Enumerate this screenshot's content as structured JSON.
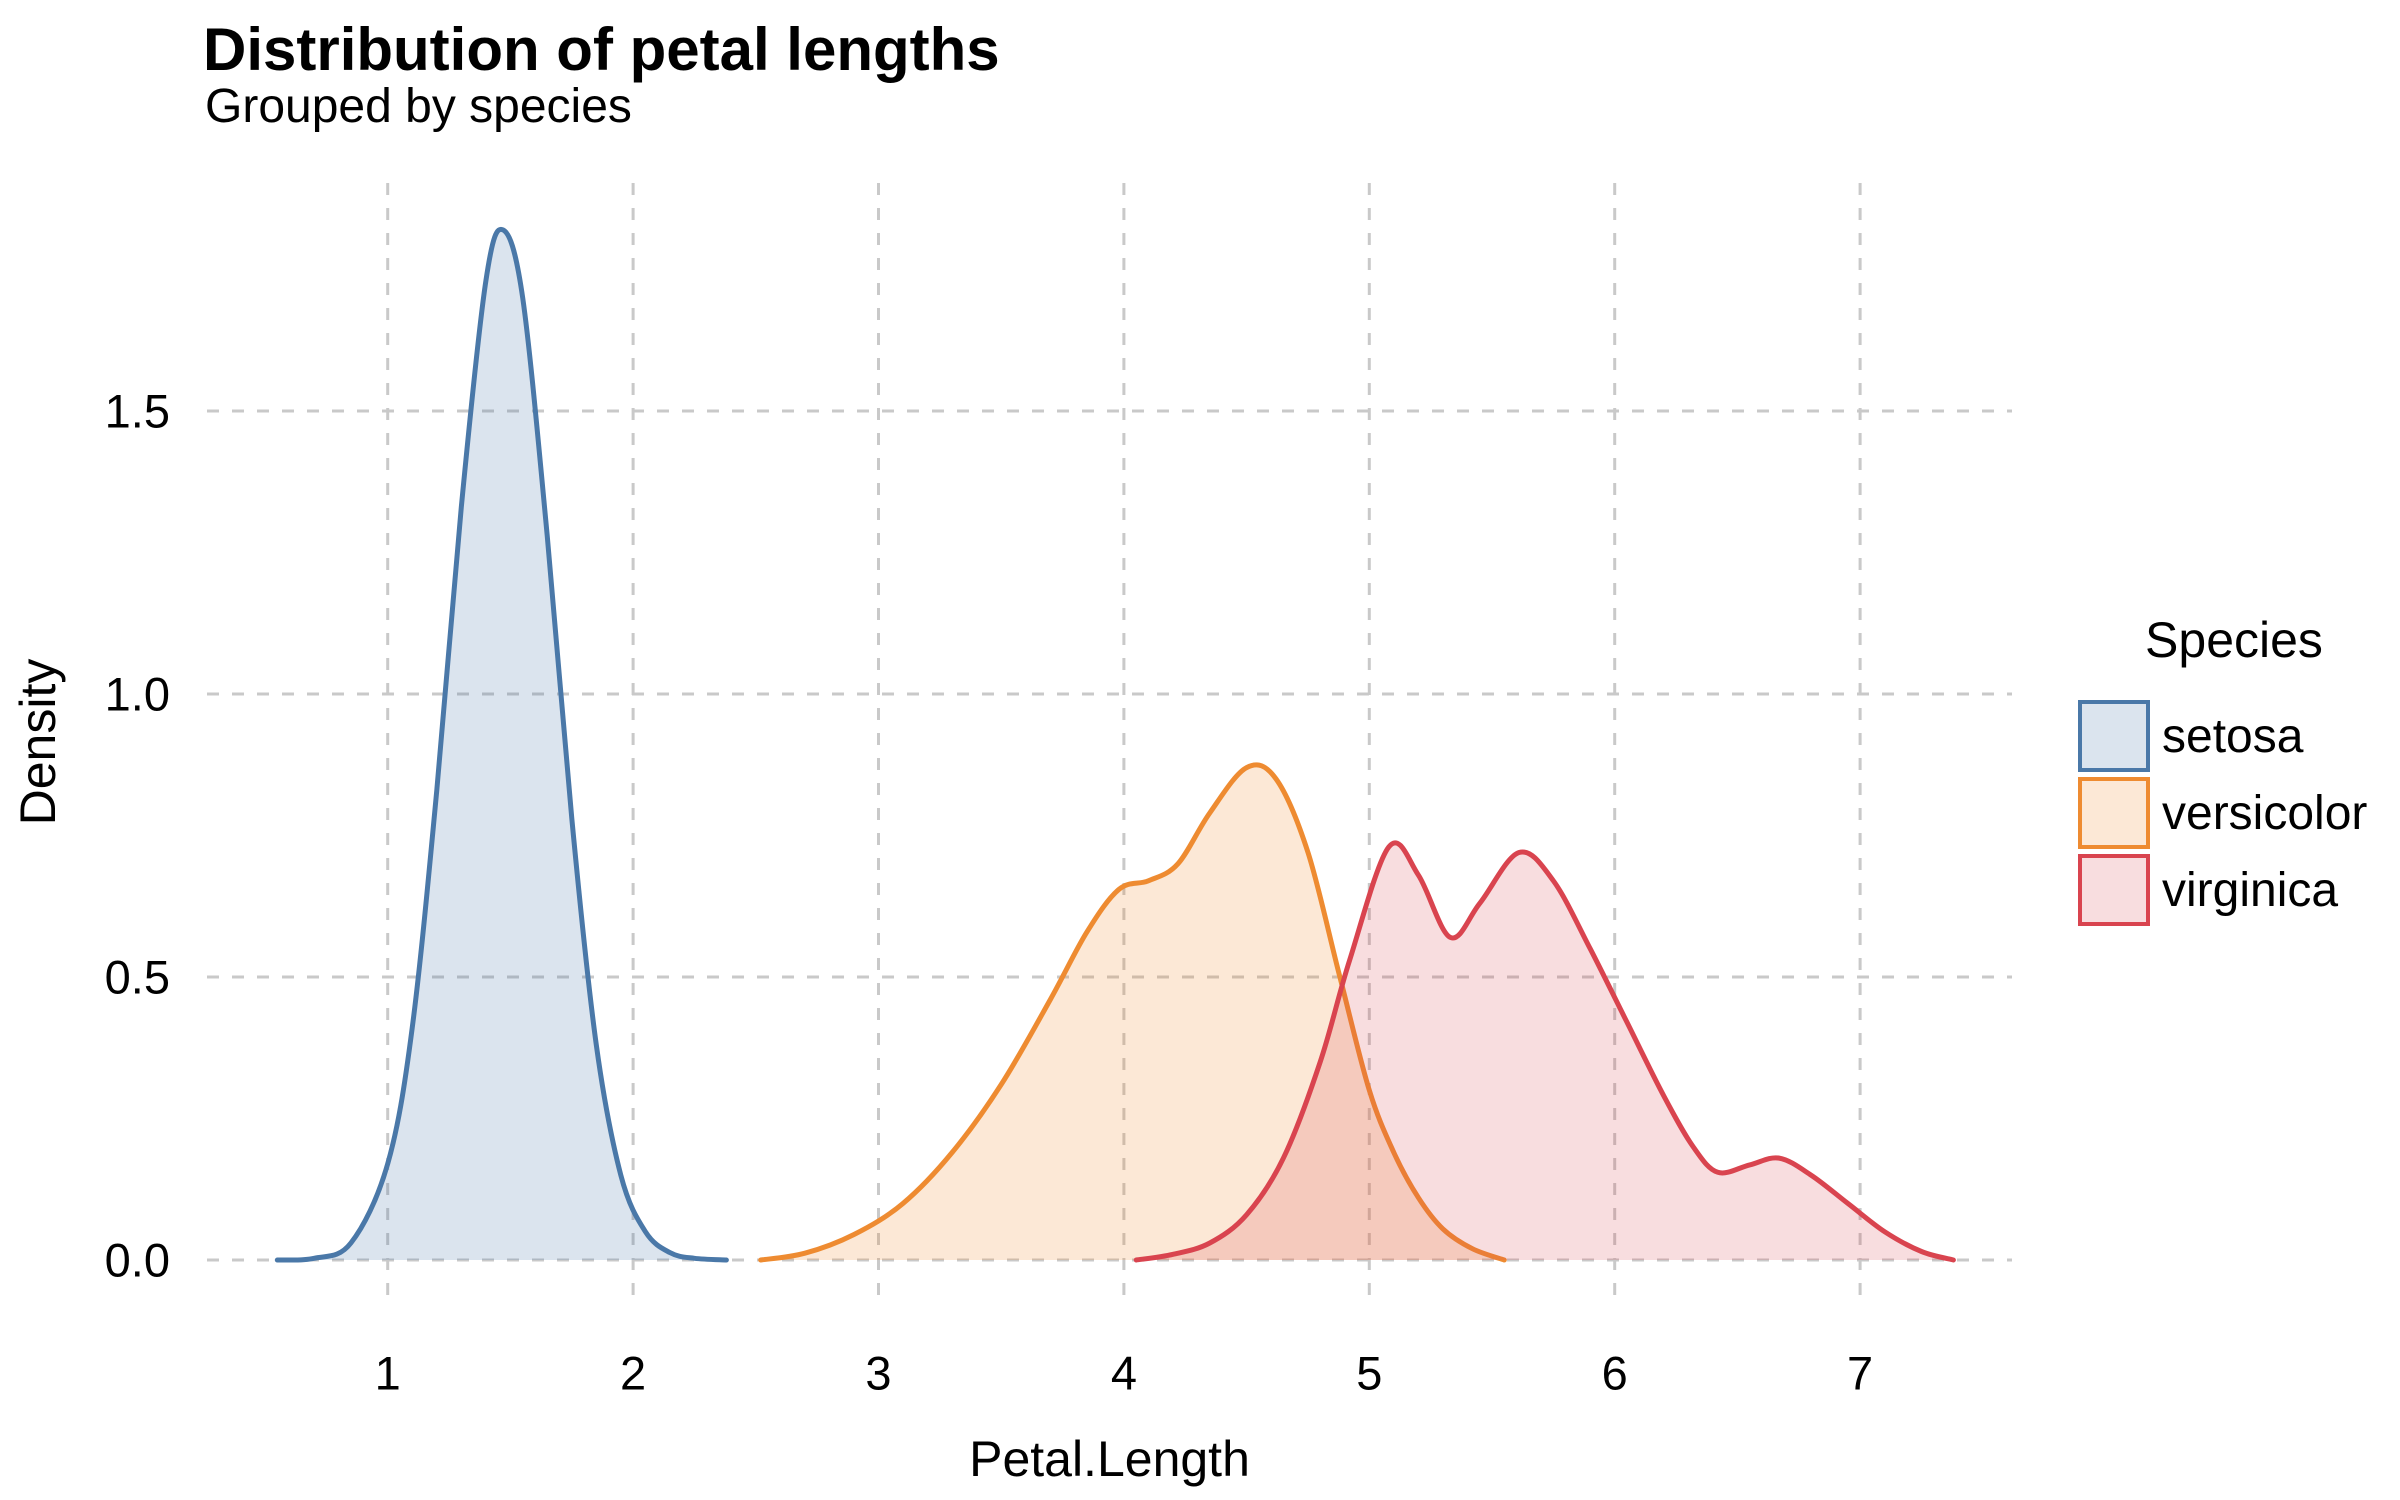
{
  "chart_data": {
    "type": "area",
    "title": "Distribution of petal lengths",
    "subtitle": "Grouped by species",
    "xlabel": "Petal.Length",
    "ylabel": "Density",
    "legend_title": "Species",
    "legend_position": "right",
    "grid": "dashed-major-both",
    "xlim": [
      0.26,
      7.62
    ],
    "ylim": [
      0,
      1.9
    ],
    "x_ticks": [
      1,
      2,
      3,
      4,
      5,
      6,
      7
    ],
    "x_tick_labels": [
      "1",
      "2",
      "3",
      "4",
      "5",
      "6",
      "7"
    ],
    "y_tick_values": [
      0,
      0.5,
      1.0,
      1.5
    ],
    "y_tick_labels": [
      "0.0",
      "0.5",
      "1.0",
      "1.5"
    ],
    "grid_color": "#c9c9c9",
    "text_color": "#000000",
    "series": [
      {
        "name": "setosa",
        "stroke": "#4a78a8",
        "fill": "rgba(74,120,168,0.20)",
        "peak": {
          "x": 1.47,
          "y": 1.82
        },
        "points": [
          [
            0.55,
            0
          ],
          [
            0.7,
            0.003
          ],
          [
            0.85,
            0.03
          ],
          [
            1.0,
            0.17
          ],
          [
            1.1,
            0.41
          ],
          [
            1.2,
            0.83
          ],
          [
            1.3,
            1.33
          ],
          [
            1.4,
            1.73
          ],
          [
            1.47,
            1.82
          ],
          [
            1.55,
            1.7
          ],
          [
            1.65,
            1.28
          ],
          [
            1.75,
            0.78
          ],
          [
            1.85,
            0.38
          ],
          [
            1.95,
            0.15
          ],
          [
            2.05,
            0.05
          ],
          [
            2.15,
            0.013
          ],
          [
            2.25,
            0.003
          ],
          [
            2.38,
            0
          ]
        ]
      },
      {
        "name": "versicolor",
        "stroke": "#ee8b31",
        "fill": "rgba(238,139,49,0.20)",
        "peak": {
          "x": 4.5,
          "y": 0.87
        },
        "points": [
          [
            2.52,
            0
          ],
          [
            2.7,
            0.012
          ],
          [
            2.9,
            0.045
          ],
          [
            3.1,
            0.1
          ],
          [
            3.3,
            0.19
          ],
          [
            3.5,
            0.31
          ],
          [
            3.7,
            0.46
          ],
          [
            3.85,
            0.58
          ],
          [
            3.98,
            0.655
          ],
          [
            4.1,
            0.67
          ],
          [
            4.22,
            0.7
          ],
          [
            4.35,
            0.79
          ],
          [
            4.5,
            0.87
          ],
          [
            4.62,
            0.85
          ],
          [
            4.75,
            0.72
          ],
          [
            4.88,
            0.5
          ],
          [
            5.0,
            0.3
          ],
          [
            5.1,
            0.19
          ],
          [
            5.2,
            0.11
          ],
          [
            5.3,
            0.055
          ],
          [
            5.42,
            0.02
          ],
          [
            5.55,
            0
          ]
        ]
      },
      {
        "name": "virginica",
        "stroke": "#d9444f",
        "fill": "rgba(217,68,79,0.18)",
        "peak": {
          "x": 5.08,
          "y": 0.73
        },
        "points": [
          [
            4.05,
            0
          ],
          [
            4.2,
            0.01
          ],
          [
            4.35,
            0.03
          ],
          [
            4.5,
            0.08
          ],
          [
            4.65,
            0.18
          ],
          [
            4.8,
            0.35
          ],
          [
            4.92,
            0.53
          ],
          [
            5.08,
            0.73
          ],
          [
            5.2,
            0.68
          ],
          [
            5.33,
            0.57
          ],
          [
            5.45,
            0.63
          ],
          [
            5.61,
            0.72
          ],
          [
            5.75,
            0.67
          ],
          [
            5.9,
            0.55
          ],
          [
            6.05,
            0.42
          ],
          [
            6.2,
            0.29
          ],
          [
            6.32,
            0.2
          ],
          [
            6.42,
            0.155
          ],
          [
            6.55,
            0.168
          ],
          [
            6.67,
            0.18
          ],
          [
            6.8,
            0.15
          ],
          [
            6.95,
            0.1
          ],
          [
            7.1,
            0.05
          ],
          [
            7.25,
            0.015
          ],
          [
            7.38,
            0
          ]
        ]
      }
    ]
  }
}
